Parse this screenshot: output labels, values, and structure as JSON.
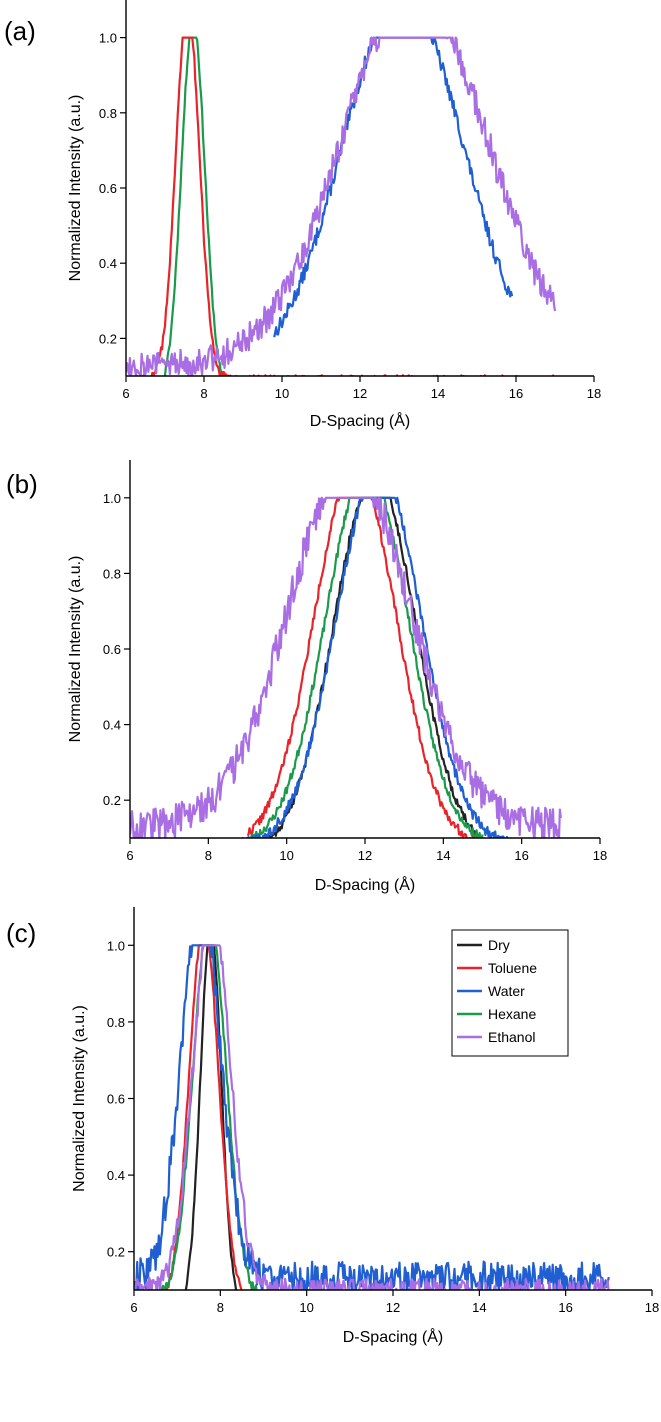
{
  "figure": {
    "colors": {
      "Dry": "#222222",
      "Toluene": "#e8242a",
      "Water": "#1f5fd1",
      "Hexane": "#1a9a4a",
      "Ethanol": "#a96ee3"
    },
    "legend": {
      "placement": "upper-right",
      "panel": "c",
      "entries": [
        "Dry",
        "Toluene",
        "Water",
        "Hexane",
        "Ethanol"
      ]
    }
  },
  "chart_data": [
    {
      "panel_label": "(a)",
      "type": "line",
      "xlabel": "D-Spacing (Å)",
      "ylabel": "Normalized Intensity (a.u.)",
      "xlim": [
        6,
        18
      ],
      "ylim": [
        0.1,
        1.1
      ],
      "xticks": [
        "6",
        "8",
        "10",
        "12",
        "14",
        "16",
        "18"
      ],
      "yticks": [
        "0.2",
        "0.4",
        "0.6",
        "0.8",
        "1.0"
      ],
      "x_range": [
        6,
        17
      ],
      "series": [
        {
          "name": "Hexane",
          "peak": 7.72,
          "sigma": 0.3,
          "amp": 1.0,
          "base": 0.05,
          "noise": 0.01,
          "seed": 11,
          "xmax": 9.0
        },
        {
          "name": "Toluene",
          "peak": 7.58,
          "sigma": 0.3,
          "amp": 1.0,
          "base": 0.09,
          "noise": 0.012,
          "seed": 12,
          "xmax": 17.0
        },
        {
          "name": "Water",
          "peak": 13.1,
          "sigma": 1.55,
          "amp": 1.0,
          "base": 0.11,
          "noise": 0.02,
          "seed": 13,
          "xmin": 9.8,
          "xmax": 15.9
        },
        {
          "name": "Ethanol",
          "peak": 13.4,
          "sigma": 1.85,
          "amp": 1.0,
          "base": 0.13,
          "noise": 0.04,
          "seed": 14,
          "xmax": 17.0
        }
      ]
    },
    {
      "panel_label": "(b)",
      "type": "line",
      "xlabel": "D-Spacing (Å)",
      "ylabel": "Normalized Intensity (a.u.)",
      "xlim": [
        6,
        18
      ],
      "ylim": [
        0.1,
        1.1
      ],
      "xticks": [
        "6",
        "8",
        "10",
        "12",
        "14",
        "16",
        "18"
      ],
      "yticks": [
        "0.2",
        "0.4",
        "0.6",
        "0.8",
        "1.0"
      ],
      "x_range": [
        6,
        17
      ],
      "series": [
        {
          "name": "Dry",
          "peak": 12.25,
          "sigma": 1.05,
          "amp": 1.0,
          "base": 0.06,
          "noise": 0.012,
          "seed": 21,
          "xmin": 9.0,
          "xmax": 15.2
        },
        {
          "name": "Toluene",
          "peak": 11.75,
          "sigma": 1.05,
          "amp": 1.0,
          "base": 0.08,
          "noise": 0.012,
          "seed": 22,
          "xmin": 9.0,
          "xmax": 17.0
        },
        {
          "name": "Hexane",
          "peak": 12.05,
          "sigma": 1.05,
          "amp": 1.0,
          "base": 0.08,
          "noise": 0.012,
          "seed": 23,
          "xmin": 9.0,
          "xmax": 15.0
        },
        {
          "name": "Water",
          "peak": 12.35,
          "sigma": 1.08,
          "amp": 1.0,
          "base": 0.08,
          "noise": 0.015,
          "seed": 24,
          "xmin": 8.3,
          "xmax": 17.0
        },
        {
          "name": "Ethanol",
          "peak": 11.6,
          "sigma": 1.55,
          "amp": 0.96,
          "base": 0.13,
          "noise": 0.045,
          "seed": 25,
          "xmax": 17.0
        }
      ]
    },
    {
      "panel_label": "(c)",
      "type": "line",
      "xlabel": "D-Spacing (Å)",
      "ylabel": "Normalized Intensity (a.u.)",
      "xlim": [
        6,
        18
      ],
      "ylim": [
        0.1,
        1.1
      ],
      "xticks": [
        "6",
        "8",
        "10",
        "12",
        "14",
        "16",
        "18"
      ],
      "yticks": [
        "0.2",
        "0.4",
        "0.6",
        "0.8",
        "1.0"
      ],
      "x_range": [
        6,
        17
      ],
      "series": [
        {
          "name": "Dry",
          "peak": 7.78,
          "sigma": 0.24,
          "amp": 1.0,
          "base": 0.05,
          "noise": 0.01,
          "seed": 31,
          "xmin": 7.0,
          "xmax": 8.8
        },
        {
          "name": "Toluene",
          "peak": 7.62,
          "sigma": 0.34,
          "amp": 1.0,
          "base": 0.06,
          "noise": 0.012,
          "seed": 32,
          "xmax": 17.0
        },
        {
          "name": "Hexane",
          "peak": 7.75,
          "sigma": 0.38,
          "amp": 1.0,
          "base": 0.08,
          "noise": 0.015,
          "seed": 33,
          "xmax": 9.6
        },
        {
          "name": "Water",
          "peak": 7.55,
          "sigma": 0.45,
          "amp": 1.0,
          "base": 0.13,
          "noise": 0.045,
          "seed": 34,
          "xmax": 17.0
        },
        {
          "name": "Ethanol",
          "peak": 7.8,
          "sigma": 0.42,
          "amp": 1.0,
          "base": 0.1,
          "noise": 0.03,
          "seed": 35,
          "xmax": 17.0
        }
      ]
    }
  ]
}
